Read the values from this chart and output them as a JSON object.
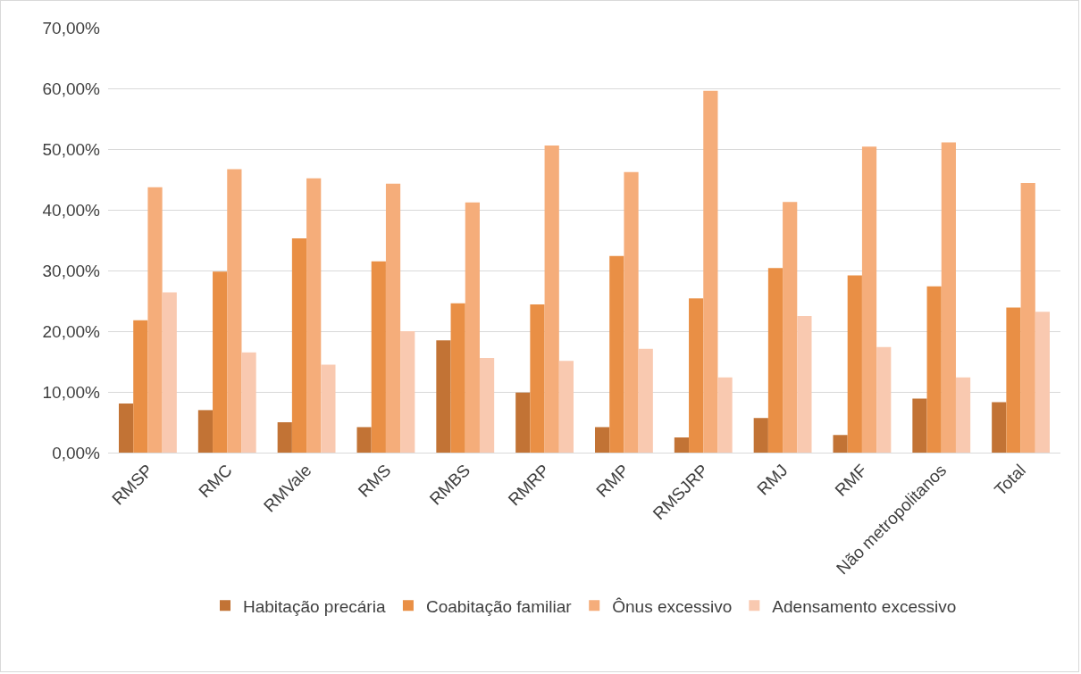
{
  "chart_data": {
    "type": "bar",
    "categories": [
      "RMSP",
      "RMC",
      "RMVale",
      "RMS",
      "RMBS",
      "RMRP",
      "RMP",
      "RMSJRP",
      "RMJ",
      "RMF",
      "Não metropolitanos",
      "Total"
    ],
    "series": [
      {
        "name": "Habitação precária",
        "color": "#c27335",
        "values": [
          8.1,
          7.0,
          5.0,
          4.2,
          18.5,
          9.9,
          4.2,
          2.5,
          5.7,
          2.9,
          8.9,
          8.3
        ]
      },
      {
        "name": "Coabitação familiar",
        "color": "#e98f45",
        "values": [
          21.8,
          29.8,
          35.3,
          31.5,
          24.6,
          24.4,
          32.4,
          25.4,
          30.4,
          29.2,
          27.4,
          23.9
        ]
      },
      {
        "name": "Ônus excessivo",
        "color": "#f5ad7a",
        "values": [
          43.7,
          46.7,
          45.2,
          44.3,
          41.2,
          50.6,
          46.2,
          59.6,
          41.3,
          50.4,
          51.1,
          44.4
        ]
      },
      {
        "name": "Adensamento excessivo",
        "color": "#f9c9b0",
        "values": [
          26.4,
          16.5,
          14.5,
          20.0,
          15.6,
          15.1,
          17.1,
          12.4,
          22.5,
          17.4,
          12.4,
          23.2
        ]
      }
    ],
    "ylim": [
      0,
      70
    ],
    "yticks": [
      {
        "value": 0,
        "label": "0,00%"
      },
      {
        "value": 10,
        "label": "10,00%"
      },
      {
        "value": 20,
        "label": "20,00%"
      },
      {
        "value": 30,
        "label": "30,00%"
      },
      {
        "value": 40,
        "label": "40,00%"
      },
      {
        "value": 50,
        "label": "50,00%"
      },
      {
        "value": 60,
        "label": "60,00%"
      },
      {
        "value": 70,
        "label": "70,00%"
      }
    ],
    "grid": "y",
    "legend": "bottom"
  }
}
